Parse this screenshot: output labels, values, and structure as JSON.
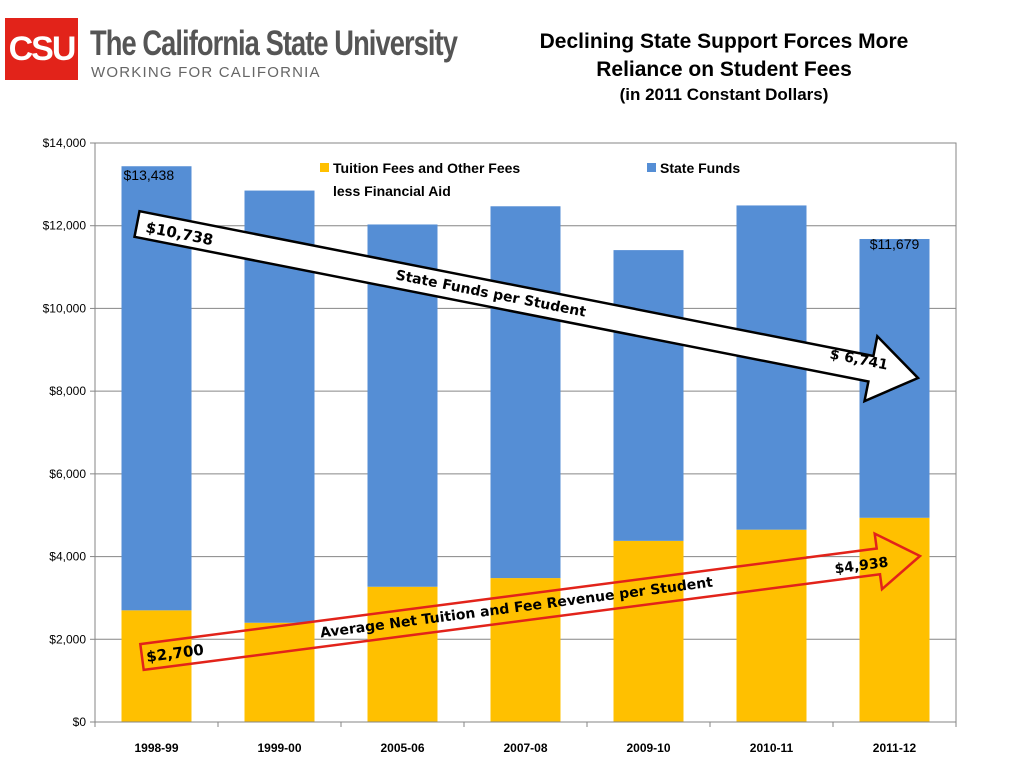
{
  "header": {
    "logo_mark": "CSU",
    "logo_name": "The California State University",
    "logo_tagline": "WORKING FOR CALIFORNIA",
    "title_line1": "Declining State Support Forces More",
    "title_line2": "Reliance on Student Fees",
    "subtitle": "(in 2011 Constant Dollars)"
  },
  "colors": {
    "brand_red": "#e2231a",
    "fees": "#ffc000",
    "state": "#558ed5",
    "arrow_state": "#000000",
    "arrow_fees": "#e2231a"
  },
  "chart_data": {
    "type": "bar",
    "stacked": true,
    "categories": [
      "1998-99",
      "1999-00",
      "2005-06",
      "2007-08",
      "2009-10",
      "2010-11",
      "2011-12"
    ],
    "series": [
      {
        "name": "Tuition Fees  and Other Fees less Financial Aid",
        "color": "#ffc000",
        "values": [
          2700,
          2400,
          3270,
          3480,
          4380,
          4650,
          4938
        ]
      },
      {
        "name": "State Funds",
        "color": "#558ed5",
        "values": [
          10738,
          10450,
          8760,
          8990,
          7030,
          7840,
          6741
        ]
      }
    ],
    "totals": [
      13438,
      12850,
      12030,
      12470,
      11410,
      12490,
      11679
    ],
    "ylim": [
      0,
      14000
    ],
    "yticks": [
      0,
      2000,
      4000,
      6000,
      8000,
      10000,
      12000,
      14000
    ],
    "ytick_labels": [
      "$0",
      "$2,000",
      "$4,000",
      "$6,000",
      "$8,000",
      "$10,000",
      "$12,000",
      "$14,000"
    ],
    "grid": true,
    "legend": {
      "position": "top",
      "fees_line1": "Tuition Fees  and Other Fees",
      "fees_line2": "less Financial Aid",
      "state": "State Funds"
    },
    "data_labels": {
      "first_total": "$13,438",
      "last_total": "$11,679"
    },
    "annotations": {
      "state_start": "$10,738",
      "state_arrow": "State Funds per Student",
      "state_end": "$ 6,741",
      "fees_start": "$2,700",
      "fees_arrow": "Average Net Tuition and Fee Revenue per Student",
      "fees_end": "$4,938"
    }
  }
}
